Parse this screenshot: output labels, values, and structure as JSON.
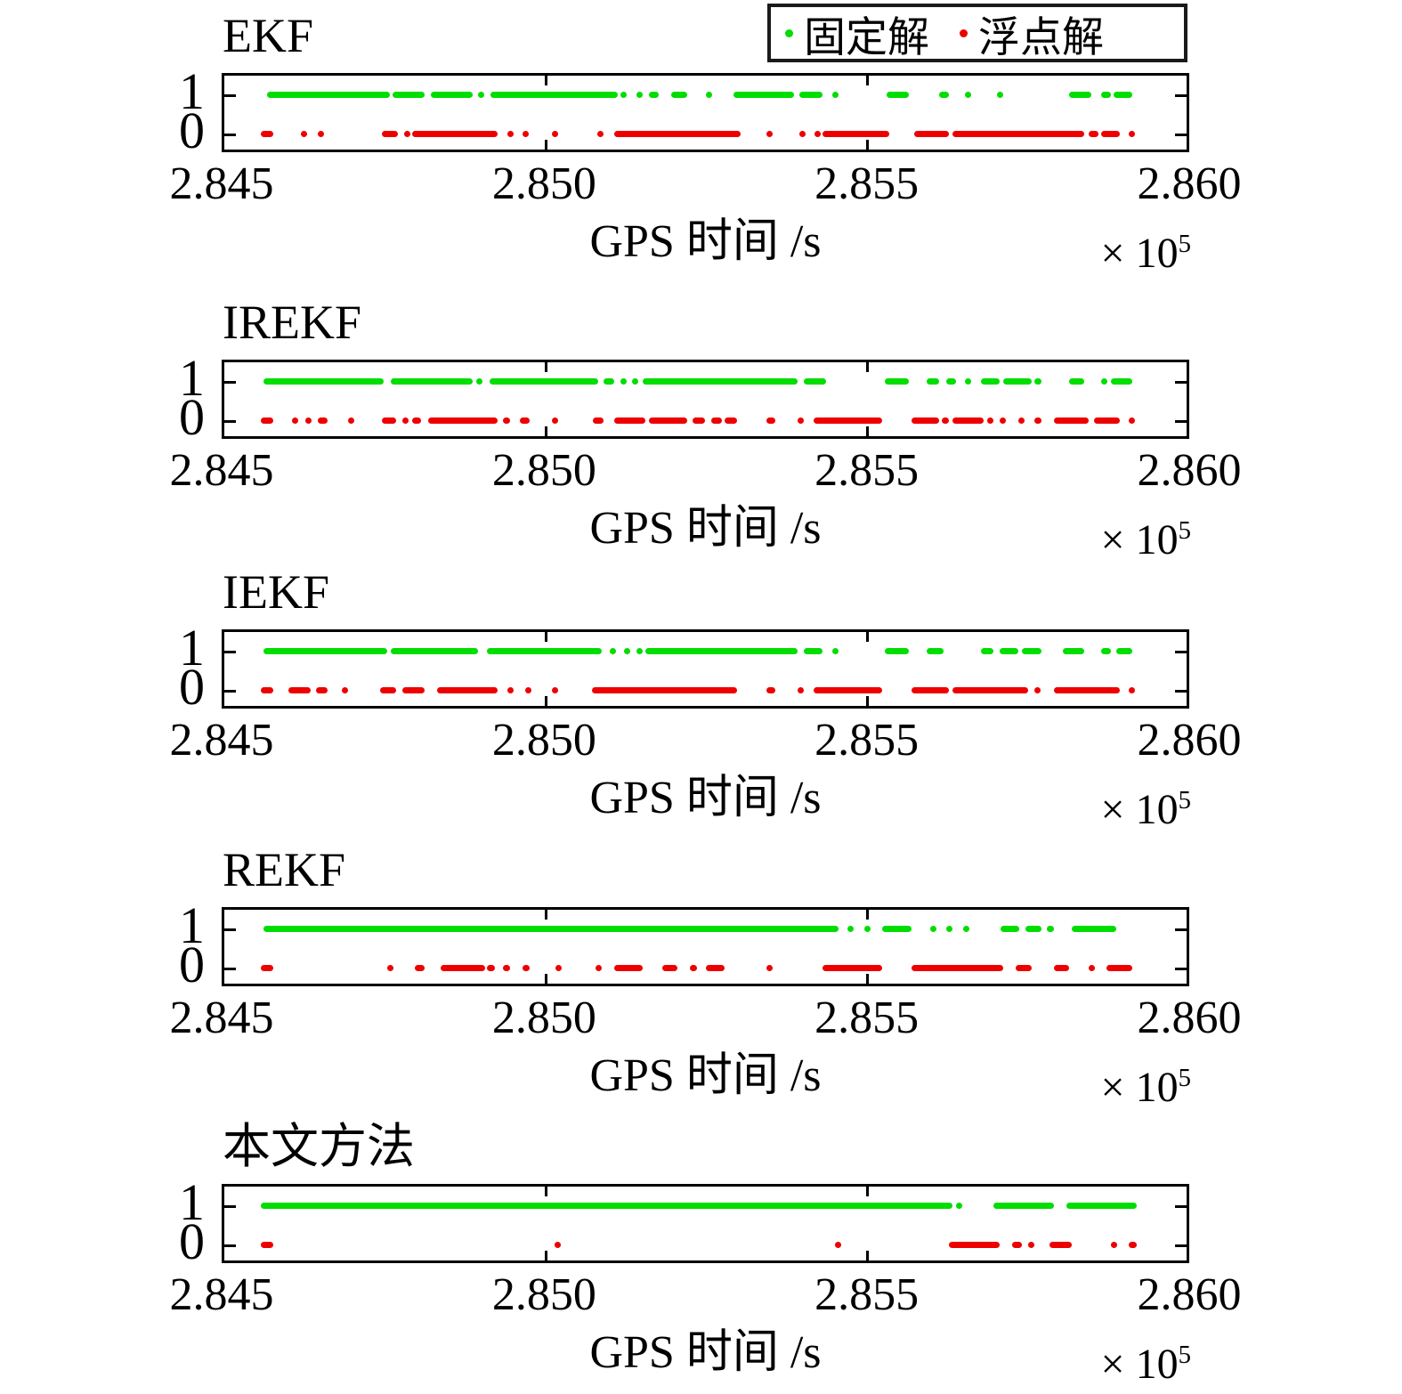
{
  "chart_data": {
    "type": "scatter",
    "description": "Ambiguity resolution status (1 = fixed solution, 0 = float solution) versus GPS time for five filtering methods",
    "x_axis": {
      "label": "GPS 时间 /s",
      "ticks": [
        "2.845",
        "2.850",
        "2.855",
        "2.860"
      ],
      "range": [
        2.845,
        2.86
      ],
      "multiplier_base": "× 10",
      "multiplier_exp": "5",
      "unit": "s"
    },
    "y_axis": {
      "ticks": [
        "1",
        "0"
      ],
      "values": [
        1,
        0
      ]
    },
    "legend": [
      {
        "label": "固定解",
        "color": "#00dd00",
        "marker": "dot",
        "y_value": 1
      },
      {
        "label": "浮点解",
        "color": "#ee0000",
        "marker": "dot",
        "y_value": 0
      }
    ],
    "colors": {
      "fixed": "#00dd00",
      "float": "#ee0000",
      "axis": "#000000"
    },
    "position_note": "segments are [start,end] fractions of the x range 2.845–2.860 (×10^5 s); equal values denote a single dot",
    "subplots": [
      {
        "title": "EKF",
        "fixed_segments": [
          [
            0.044,
            0.172
          ],
          [
            0.175,
            0.208
          ],
          [
            0.215,
            0.258
          ],
          [
            0.264,
            0.269
          ],
          [
            0.277,
            0.409
          ],
          [
            0.412,
            0.415
          ],
          [
            0.428,
            0.428
          ],
          [
            0.441,
            0.451
          ],
          [
            0.464,
            0.481
          ],
          [
            0.5,
            0.5
          ],
          [
            0.529,
            0.592
          ],
          [
            0.598,
            0.622
          ],
          [
            0.632,
            0.632
          ],
          [
            0.688,
            0.711
          ],
          [
            0.743,
            0.753
          ],
          [
            0.77,
            0.77
          ],
          [
            0.803,
            0.803
          ],
          [
            0.878,
            0.901
          ],
          [
            0.911,
            0.921
          ],
          [
            0.924,
            0.944
          ]
        ],
        "float_segments": [
          [
            0.038,
            0.051
          ],
          [
            0.08,
            0.08
          ],
          [
            0.097,
            0.097
          ],
          [
            0.164,
            0.18
          ],
          [
            0.187,
            0.187
          ],
          [
            0.195,
            0.284
          ],
          [
            0.294,
            0.294
          ],
          [
            0.31,
            0.31
          ],
          [
            0.34,
            0.34
          ],
          [
            0.388,
            0.388
          ],
          [
            0.405,
            0.537
          ],
          [
            0.563,
            0.569
          ],
          [
            0.598,
            0.598
          ],
          [
            0.613,
            0.613
          ],
          [
            0.622,
            0.691
          ],
          [
            0.717,
            0.753
          ],
          [
            0.757,
            0.894
          ],
          [
            0.898,
            0.908
          ],
          [
            0.911,
            0.931
          ],
          [
            0.94,
            0.94
          ]
        ]
      },
      {
        "title": "IREKF",
        "fixed_segments": [
          [
            0.041,
            0.166
          ],
          [
            0.173,
            0.258
          ],
          [
            0.262,
            0.267
          ],
          [
            0.276,
            0.389
          ],
          [
            0.394,
            0.405
          ],
          [
            0.412,
            0.412
          ],
          [
            0.424,
            0.424
          ],
          [
            0.435,
            0.596
          ],
          [
            0.602,
            0.625
          ],
          [
            0.686,
            0.711
          ],
          [
            0.73,
            0.743
          ],
          [
            0.75,
            0.76
          ],
          [
            0.77,
            0.776
          ],
          [
            0.786,
            0.806
          ],
          [
            0.809,
            0.839
          ],
          [
            0.842,
            0.849
          ],
          [
            0.878,
            0.894
          ],
          [
            0.911,
            0.914
          ],
          [
            0.921,
            0.944
          ]
        ],
        "float_segments": [
          [
            0.038,
            0.051
          ],
          [
            0.07,
            0.076
          ],
          [
            0.084,
            0.09
          ],
          [
            0.097,
            0.107
          ],
          [
            0.129,
            0.129
          ],
          [
            0.164,
            0.179
          ],
          [
            0.185,
            0.185
          ],
          [
            0.195,
            0.204
          ],
          [
            0.212,
            0.284
          ],
          [
            0.29,
            0.297
          ],
          [
            0.307,
            0.317
          ],
          [
            0.34,
            0.346
          ],
          [
            0.383,
            0.394
          ],
          [
            0.405,
            0.438
          ],
          [
            0.441,
            0.481
          ],
          [
            0.487,
            0.5
          ],
          [
            0.506,
            0.517
          ],
          [
            0.52,
            0.533
          ],
          [
            0.563,
            0.573
          ],
          [
            0.596,
            0.602
          ],
          [
            0.612,
            0.684
          ],
          [
            0.714,
            0.743
          ],
          [
            0.746,
            0.753
          ],
          [
            0.757,
            0.789
          ],
          [
            0.793,
            0.799
          ],
          [
            0.806,
            0.812
          ],
          [
            0.825,
            0.831
          ],
          [
            0.842,
            0.849
          ],
          [
            0.862,
            0.898
          ],
          [
            0.904,
            0.931
          ],
          [
            0.94,
            0.94
          ]
        ]
      },
      {
        "title": "IEKF",
        "fixed_segments": [
          [
            0.041,
            0.169
          ],
          [
            0.173,
            0.264
          ],
          [
            0.273,
            0.392
          ],
          [
            0.401,
            0.407
          ],
          [
            0.415,
            0.415
          ],
          [
            0.428,
            0.428
          ],
          [
            0.438,
            0.596
          ],
          [
            0.602,
            0.622
          ],
          [
            0.632,
            0.632
          ],
          [
            0.686,
            0.711
          ],
          [
            0.73,
            0.747
          ],
          [
            0.786,
            0.799
          ],
          [
            0.806,
            0.825
          ],
          [
            0.829,
            0.849
          ],
          [
            0.871,
            0.894
          ],
          [
            0.911,
            0.921
          ],
          [
            0.927,
            0.944
          ]
        ],
        "float_segments": [
          [
            0.038,
            0.051
          ],
          [
            0.067,
            0.09
          ],
          [
            0.095,
            0.107
          ],
          [
            0.122,
            0.129
          ],
          [
            0.162,
            0.179
          ],
          [
            0.185,
            0.208
          ],
          [
            0.221,
            0.284
          ],
          [
            0.294,
            0.294
          ],
          [
            0.313,
            0.313
          ],
          [
            0.34,
            0.34
          ],
          [
            0.382,
            0.533
          ],
          [
            0.563,
            0.573
          ],
          [
            0.596,
            0.602
          ],
          [
            0.612,
            0.684
          ],
          [
            0.714,
            0.753
          ],
          [
            0.757,
            0.835
          ],
          [
            0.842,
            0.842
          ],
          [
            0.862,
            0.931
          ],
          [
            0.94,
            0.94
          ]
        ]
      },
      {
        "title": "REKF",
        "fixed_segments": [
          [
            0.041,
            0.638
          ],
          [
            0.648,
            0.648
          ],
          [
            0.665,
            0.665
          ],
          [
            0.684,
            0.714
          ],
          [
            0.734,
            0.734
          ],
          [
            0.75,
            0.75
          ],
          [
            0.768,
            0.768
          ],
          [
            0.807,
            0.826
          ],
          [
            0.833,
            0.849
          ],
          [
            0.855,
            0.862
          ],
          [
            0.881,
            0.927
          ]
        ],
        "float_segments": [
          [
            0.038,
            0.051
          ],
          [
            0.169,
            0.169
          ],
          [
            0.198,
            0.208
          ],
          [
            0.225,
            0.271
          ],
          [
            0.273,
            0.281
          ],
          [
            0.29,
            0.297
          ],
          [
            0.31,
            0.317
          ],
          [
            0.344,
            0.344
          ],
          [
            0.386,
            0.386
          ],
          [
            0.405,
            0.435
          ],
          [
            0.455,
            0.471
          ],
          [
            0.484,
            0.491
          ],
          [
            0.5,
            0.52
          ],
          [
            0.563,
            0.569
          ],
          [
            0.622,
            0.684
          ],
          [
            0.714,
            0.809
          ],
          [
            0.822,
            0.839
          ],
          [
            0.862,
            0.878
          ],
          [
            0.898,
            0.898
          ],
          [
            0.917,
            0.944
          ]
        ]
      },
      {
        "title": "本文方法",
        "fixed_segments": [
          [
            0.038,
            0.757
          ],
          [
            0.76,
            0.766
          ],
          [
            0.799,
            0.862
          ],
          [
            0.875,
            0.948
          ]
        ],
        "float_segments": [
          [
            0.038,
            0.051
          ],
          [
            0.343,
            0.343
          ],
          [
            0.635,
            0.635
          ],
          [
            0.753,
            0.806
          ],
          [
            0.819,
            0.829
          ],
          [
            0.835,
            0.835
          ],
          [
            0.858,
            0.881
          ],
          [
            0.921,
            0.927
          ],
          [
            0.94,
            0.948
          ]
        ]
      }
    ]
  }
}
